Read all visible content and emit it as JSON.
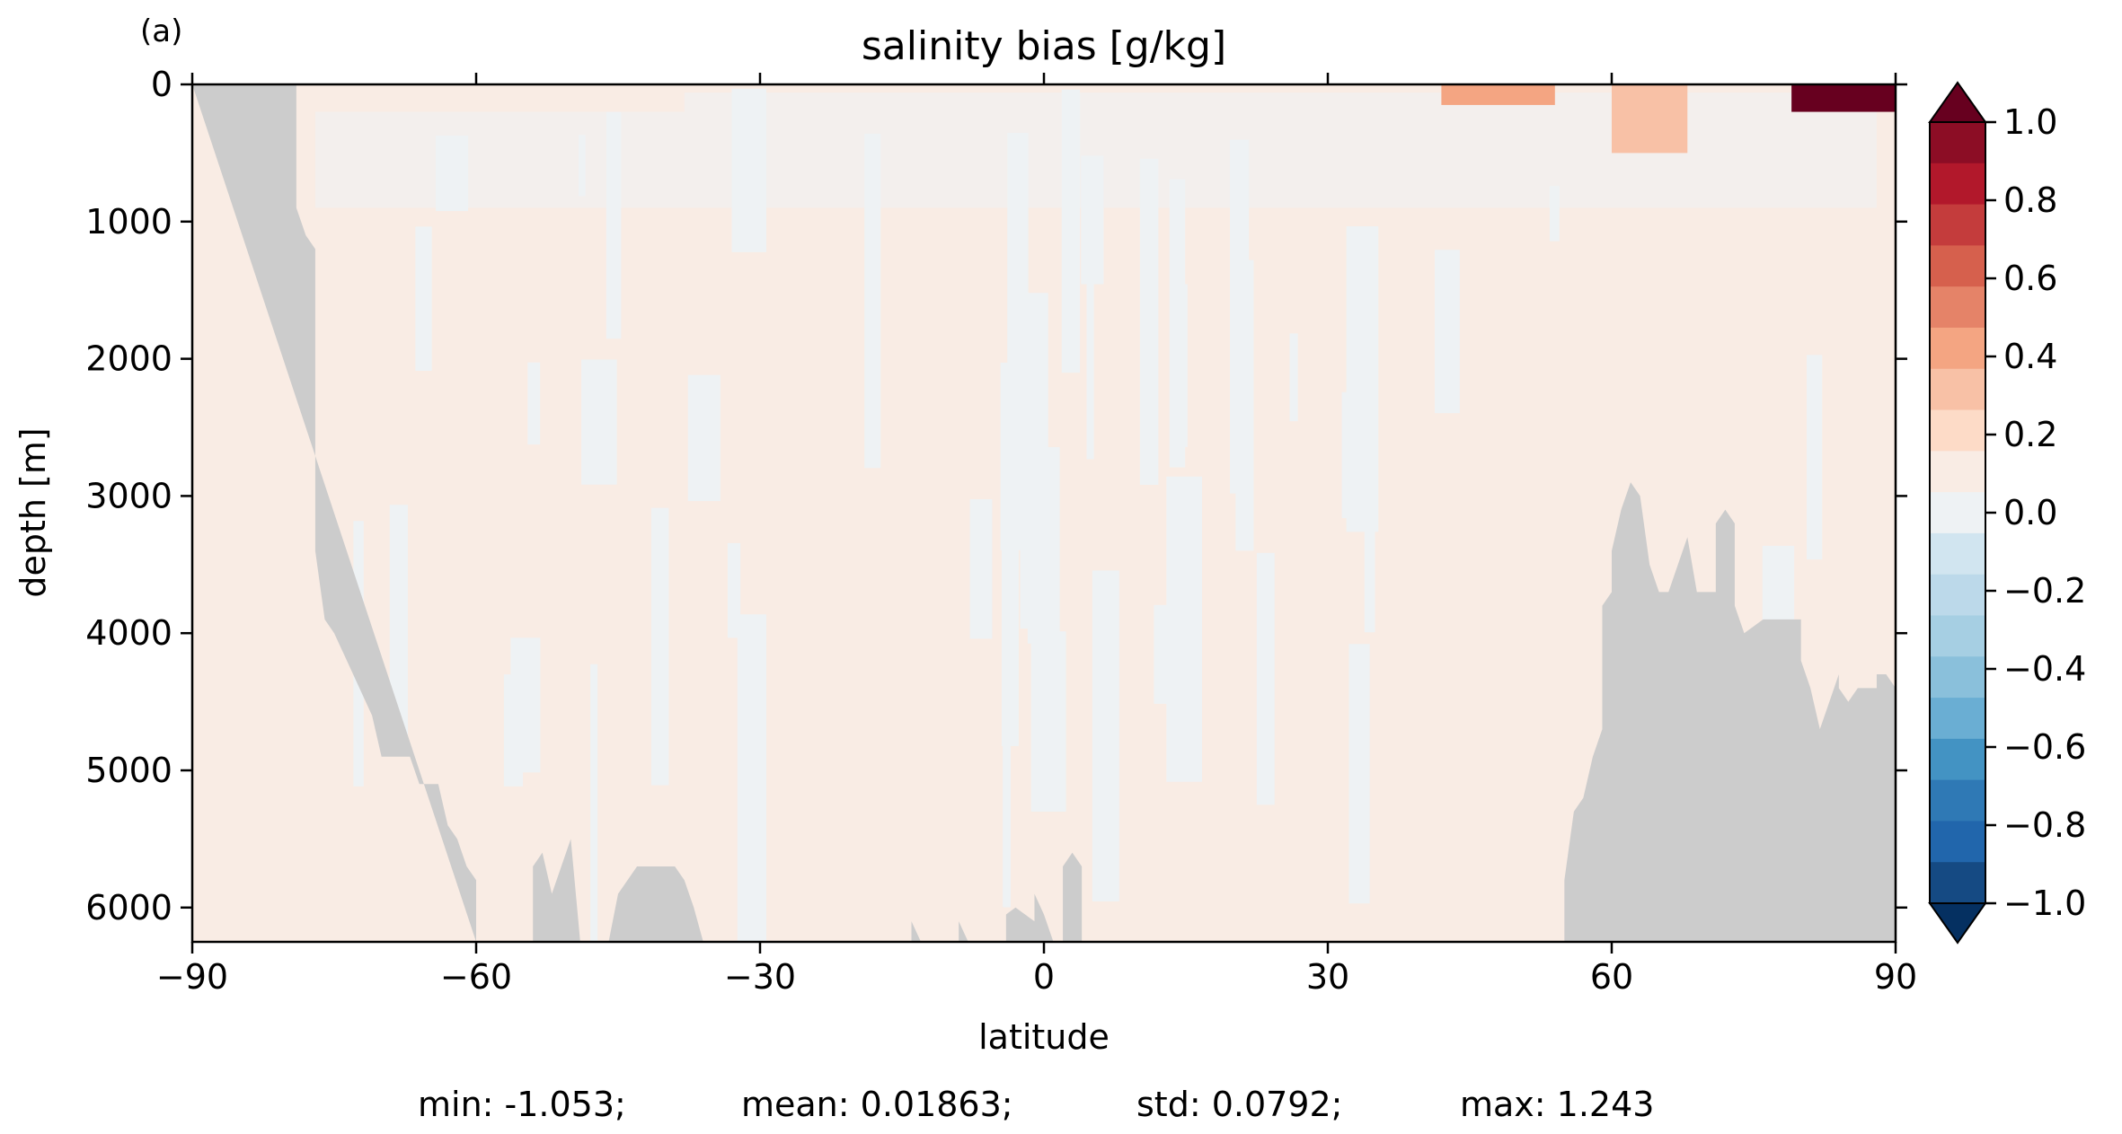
{
  "panel_label": "(a)",
  "chart_data": {
    "type": "heatmap",
    "title": "salinity bias [g/kg]",
    "xlabel": "latitude",
    "ylabel": "depth [m]",
    "xlim": [
      -90,
      90
    ],
    "ylim": [
      6250,
      0
    ],
    "y_inverted": true,
    "x_ticks": [
      -90,
      -60,
      -30,
      0,
      30,
      60,
      90
    ],
    "x_tick_labels": [
      "−90",
      "−60",
      "−30",
      "0",
      "30",
      "60",
      "90"
    ],
    "y_ticks": [
      0,
      1000,
      2000,
      3000,
      4000,
      5000,
      6000
    ],
    "y_tick_labels": [
      "0",
      "1000",
      "2000",
      "3000",
      "4000",
      "5000",
      "6000"
    ],
    "colorbar": {
      "vmin": -1.0,
      "vmax": 1.0,
      "levels": 20,
      "extend": "both",
      "colormap": "RdBu_r",
      "ticks": [
        1.0,
        0.8,
        0.6,
        0.4,
        0.2,
        0.0,
        -0.2,
        -0.4,
        -0.6,
        -0.8,
        -1.0
      ],
      "tick_labels": [
        "1.0",
        "0.8",
        "0.6",
        "0.4",
        "0.2",
        "0.0",
        "−0.2",
        "−0.4",
        "−0.6",
        "−0.8",
        "−1.0"
      ],
      "colors_top_to_bottom": [
        "#8c0d25",
        "#b2182b",
        "#c43c3c",
        "#d6604d",
        "#e58368",
        "#f4a582",
        "#f8c1a6",
        "#fddbc7",
        "#f9ece4",
        "#eef2f4",
        "#d1e5f0",
        "#bcd9ea",
        "#a6cfe3",
        "#8ac0db",
        "#6aaed3",
        "#4393c3",
        "#2f79b5",
        "#2166ac",
        "#154a83"
      ],
      "over_color": "#67001f",
      "under_color": "#053061"
    },
    "background_bias_positive": "#f9ece4",
    "background_bias_negative": "#eef2f4",
    "land_mask_color": "#cccccc",
    "land_mask_bathymetry": {
      "south": [
        [
          -90,
          0
        ],
        [
          -79,
          0
        ],
        [
          -79,
          900
        ],
        [
          -78,
          1100
        ],
        [
          -77,
          1200
        ],
        [
          -77,
          3400
        ],
        [
          -76,
          3900
        ],
        [
          -75,
          4000
        ],
        [
          -73,
          4300
        ],
        [
          -71,
          4600
        ],
        [
          -70,
          4900
        ],
        [
          -67,
          4900
        ],
        [
          -66,
          5100
        ],
        [
          -64,
          5100
        ],
        [
          -63,
          5400
        ],
        [
          -62,
          5500
        ],
        [
          -61,
          5700
        ],
        [
          -60,
          5800
        ],
        [
          -60,
          6250
        ]
      ],
      "mid_ridges": [
        [
          [
            -54,
            6250
          ],
          [
            -54,
            5700
          ],
          [
            -53,
            5600
          ],
          [
            -52,
            5900
          ],
          [
            -51,
            5700
          ],
          [
            -50,
            5500
          ],
          [
            -49,
            6250
          ]
        ],
        [
          [
            -46,
            6250
          ],
          [
            -45,
            5900
          ],
          [
            -44,
            5800
          ],
          [
            -43,
            5700
          ],
          [
            -39,
            5700
          ],
          [
            -38,
            5800
          ],
          [
            -37,
            6000
          ],
          [
            -36,
            6250
          ]
        ],
        [
          [
            -14,
            6250
          ],
          [
            -14,
            6100
          ],
          [
            -13,
            6250
          ]
        ],
        [
          [
            -9,
            6250
          ],
          [
            -9,
            6100
          ],
          [
            -8,
            6250
          ]
        ],
        [
          [
            -4,
            6250
          ],
          [
            -4,
            6050
          ],
          [
            -3,
            6000
          ],
          [
            -1,
            6100
          ],
          [
            -1,
            5900
          ],
          [
            0,
            6050
          ],
          [
            1,
            6250
          ]
        ],
        [
          [
            2,
            6250
          ],
          [
            2,
            5700
          ],
          [
            3,
            5600
          ],
          [
            4,
            5700
          ],
          [
            4,
            6250
          ]
        ]
      ],
      "north": [
        [
          55,
          6250
        ],
        [
          55,
          5800
        ],
        [
          56,
          5300
        ],
        [
          57,
          5200
        ],
        [
          58,
          4900
        ],
        [
          59,
          4700
        ],
        [
          59,
          3800
        ],
        [
          60,
          3700
        ],
        [
          60,
          3400
        ],
        [
          61,
          3100
        ],
        [
          62,
          2900
        ],
        [
          63,
          3000
        ],
        [
          64,
          3500
        ],
        [
          65,
          3700
        ],
        [
          66,
          3700
        ],
        [
          67,
          3500
        ],
        [
          68,
          3300
        ],
        [
          69,
          3700
        ],
        [
          70,
          3700
        ],
        [
          71,
          3700
        ],
        [
          71,
          3200
        ],
        [
          72,
          3100
        ],
        [
          73,
          3200
        ],
        [
          73,
          3800
        ],
        [
          74,
          4000
        ],
        [
          76,
          3900
        ],
        [
          80,
          3900
        ],
        [
          80,
          4200
        ],
        [
          81,
          4400
        ],
        [
          82,
          4700
        ],
        [
          83,
          4500
        ],
        [
          84,
          4300
        ],
        [
          84,
          4400
        ],
        [
          85,
          4500
        ],
        [
          86,
          4400
        ],
        [
          88,
          4400
        ],
        [
          88,
          4300
        ],
        [
          89,
          4300
        ],
        [
          90,
          4400
        ],
        [
          90,
          6250
        ]
      ]
    },
    "annotations": [
      {
        "lat_range": [
          79,
          90
        ],
        "depth_range": [
          0,
          200
        ],
        "value": 1.1
      },
      {
        "lat_range": [
          42,
          54
        ],
        "depth_range": [
          0,
          150
        ],
        "value": 0.45
      },
      {
        "lat_range": [
          60,
          68
        ],
        "depth_range": [
          0,
          500
        ],
        "value": 0.3
      },
      {
        "lat_range": [
          -78,
          -38
        ],
        "depth_range": [
          0,
          200
        ],
        "value": 0.15
      }
    ],
    "stats": {
      "min_label": "min: -1.053;",
      "mean_label": "mean: 0.01863;",
      "std_label": "std: 0.0792;",
      "max_label": "max: 1.243"
    }
  }
}
